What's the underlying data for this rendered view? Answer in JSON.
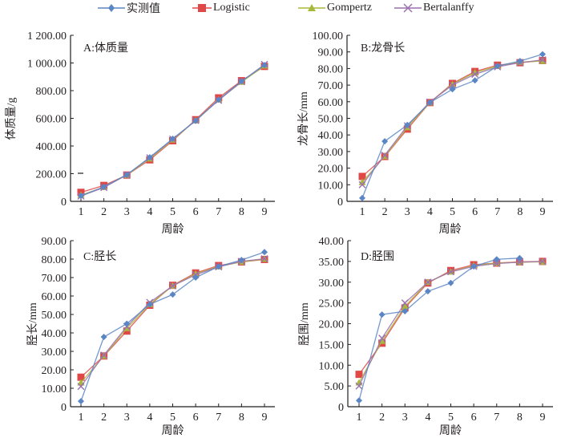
{
  "legend": [
    {
      "name": "实测值",
      "color": "#5b86c5",
      "marker": "diamond"
    },
    {
      "name": "Logistic",
      "color": "#e04848",
      "marker": "square"
    },
    {
      "name": "Gompertz",
      "color": "#a8b83a",
      "marker": "triangle"
    },
    {
      "name": "Bertalanffy",
      "color": "#9a6fb0",
      "marker": "x"
    }
  ],
  "chart_data": [
    {
      "id": "A",
      "type": "line",
      "title": "A:体质量",
      "xlabel": "周龄",
      "ylabel": "体质量/g",
      "x": [
        1,
        2,
        3,
        4,
        5,
        6,
        7,
        8,
        9
      ],
      "xticks": [
        "1",
        "2",
        "3",
        "4",
        "5",
        "6",
        "7",
        "8",
        "9"
      ],
      "ylim": [
        0,
        1200
      ],
      "yticks": [
        {
          "value": 0,
          "label": "0"
        },
        {
          "value": 200,
          "label": "200.00"
        },
        {
          "value": 400,
          "label": "400.00"
        },
        {
          "value": 600,
          "label": "600.00"
        },
        {
          "value": 800,
          "label": "800.00"
        },
        {
          "value": 1000,
          "label": "1 000.00"
        },
        {
          "value": 1200,
          "label": "1 200.00"
        }
      ],
      "series": [
        {
          "name": "实测值",
          "values": [
            40,
            105,
            192,
            318,
            452,
            582,
            735,
            868,
            985
          ]
        },
        {
          "name": "Logistic",
          "values": [
            65,
            115,
            190,
            300,
            438,
            590,
            748,
            872,
            975
          ]
        },
        {
          "name": "Gompertz",
          "values": [
            45,
            102,
            190,
            308,
            445,
            585,
            735,
            862,
            980
          ]
        },
        {
          "name": "Bertalanffy",
          "values": [
            38,
            100,
            192,
            315,
            450,
            585,
            730,
            865,
            990
          ]
        }
      ]
    },
    {
      "id": "B",
      "type": "line",
      "title": "B:龙骨长",
      "xlabel": "周龄",
      "ylabel": "龙骨长/mm",
      "x": [
        1,
        2,
        3,
        4,
        5,
        6,
        7,
        8,
        9
      ],
      "xticks": [
        "1",
        "2",
        "3",
        "4",
        "5",
        "6",
        "7",
        "8",
        "9"
      ],
      "ylim": [
        0,
        100
      ],
      "yticks": [
        {
          "value": 0,
          "label": "0"
        },
        {
          "value": 10,
          "label": "10.00"
        },
        {
          "value": 20,
          "label": "20.00"
        },
        {
          "value": 30,
          "label": "30.00"
        },
        {
          "value": 40,
          "label": "40.00"
        },
        {
          "value": 50,
          "label": "50.00"
        },
        {
          "value": 60,
          "label": "60.00"
        },
        {
          "value": 70,
          "label": "70.00"
        },
        {
          "value": 80,
          "label": "80.00"
        },
        {
          "value": 90,
          "label": "90.00"
        },
        {
          "value": 100,
          "label": "100.00"
        }
      ],
      "series": [
        {
          "name": "实测值",
          "values": [
            2,
            36.2,
            46,
            59.5,
            67.5,
            72.8,
            81.5,
            84.5,
            88.6
          ]
        },
        {
          "name": "Logistic",
          "values": [
            15,
            27,
            43.5,
            59.5,
            71,
            78.2,
            82,
            83.5,
            84.8
          ]
        },
        {
          "name": "Gompertz",
          "values": [
            11.5,
            27.2,
            44.5,
            59.5,
            70.5,
            77.5,
            81.5,
            83.8,
            84.5
          ]
        },
        {
          "name": "Bertalanffy",
          "values": [
            10,
            27.8,
            45.5,
            59.8,
            70,
            76.5,
            81,
            83.5,
            85.2
          ]
        }
      ]
    },
    {
      "id": "C",
      "type": "line",
      "title": "C:胫长",
      "xlabel": "周龄",
      "ylabel": "胫长/mm",
      "x": [
        1,
        2,
        3,
        4,
        5,
        6,
        7,
        8,
        9
      ],
      "xticks": [
        "1",
        "2",
        "3",
        "4",
        "5",
        "6",
        "7",
        "8",
        "9"
      ],
      "ylim": [
        0,
        90
      ],
      "yticks": [
        {
          "value": 0,
          "label": "0"
        },
        {
          "value": 10,
          "label": "10.00"
        },
        {
          "value": 20,
          "label": "20.00"
        },
        {
          "value": 30,
          "label": "30.00"
        },
        {
          "value": 40,
          "label": "40.00"
        },
        {
          "value": 50,
          "label": "50.00"
        },
        {
          "value": 60,
          "label": "60.00"
        },
        {
          "value": 70,
          "label": "70.00"
        },
        {
          "value": 80,
          "label": "80.00"
        },
        {
          "value": 90,
          "label": "90.00"
        }
      ],
      "series": [
        {
          "name": "实测值",
          "values": [
            3,
            37.8,
            45,
            55.5,
            60.8,
            70,
            76,
            79.5,
            83.8
          ]
        },
        {
          "name": "Logistic",
          "values": [
            16,
            27.5,
            41,
            55,
            65.8,
            72.5,
            76.5,
            78.5,
            79.8
          ]
        },
        {
          "name": "Gompertz",
          "values": [
            13,
            27.5,
            42.5,
            55.5,
            65.5,
            72,
            76,
            78.5,
            80
          ]
        },
        {
          "name": "Bertalanffy",
          "values": [
            11,
            28,
            43.5,
            56.5,
            65.5,
            71.5,
            75.8,
            78.8,
            80.2
          ]
        }
      ]
    },
    {
      "id": "D",
      "type": "line",
      "title": "D:胫围",
      "xlabel": "周龄",
      "ylabel": "胫围/mm",
      "x": [
        1,
        2,
        3,
        4,
        5,
        6,
        7,
        8,
        9
      ],
      "xticks": [
        "1",
        "2",
        "3",
        "4",
        "5",
        "6",
        "7",
        "8",
        "9"
      ],
      "ylim": [
        0,
        40
      ],
      "yticks": [
        {
          "value": 0,
          "label": "0"
        },
        {
          "value": 5,
          "label": "5.00"
        },
        {
          "value": 10,
          "label": "10.00"
        },
        {
          "value": 15,
          "label": "15.00"
        },
        {
          "value": 20,
          "label": "20.00"
        },
        {
          "value": 25,
          "label": "25.00"
        },
        {
          "value": 30,
          "label": "30.00"
        },
        {
          "value": 35,
          "label": "35.00"
        },
        {
          "value": 40,
          "label": "40.00"
        }
      ],
      "series": [
        {
          "name": "实测值",
          "values": [
            1.5,
            22.2,
            23,
            27.8,
            29.8,
            33.8,
            35.5,
            35.8,
            null
          ]
        },
        {
          "name": "Logistic",
          "values": [
            7.8,
            15.3,
            23.8,
            29.8,
            32.8,
            34.2,
            34.6,
            34.9,
            35
          ]
        },
        {
          "name": "Gompertz",
          "values": [
            5.8,
            15.8,
            24.2,
            30,
            32.5,
            34,
            34.6,
            34.8,
            34.9
          ]
        },
        {
          "name": "Bertalanffy",
          "values": [
            5,
            16.5,
            25,
            30,
            32.5,
            33.8,
            34.5,
            34.8,
            35
          ]
        }
      ]
    }
  ]
}
